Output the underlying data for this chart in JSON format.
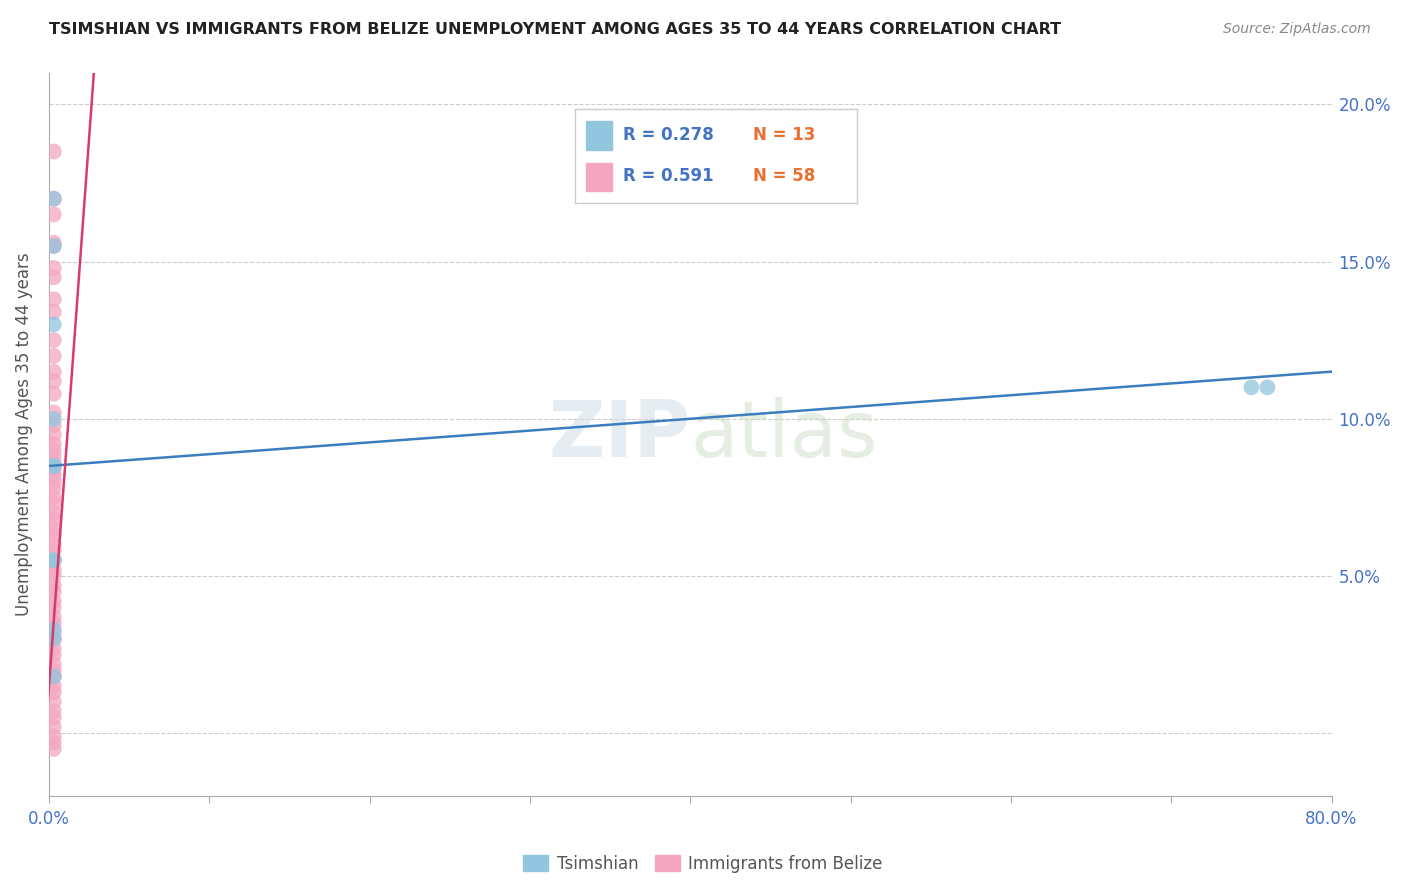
{
  "title": "TSIMSHIAN VS IMMIGRANTS FROM BELIZE UNEMPLOYMENT AMONG AGES 35 TO 44 YEARS CORRELATION CHART",
  "source": "Source: ZipAtlas.com",
  "ylabel": "Unemployment Among Ages 35 to 44 years",
  "xmin": 0.0,
  "xmax": 0.8,
  "ymin": -0.02,
  "ymax": 0.21,
  "xtick_positions": [
    0.0,
    0.1,
    0.2,
    0.3,
    0.4,
    0.5,
    0.6,
    0.7,
    0.8
  ],
  "xtick_labels": [
    "0.0%",
    "",
    "",
    "",
    "",
    "",
    "",
    "",
    "80.0%"
  ],
  "ytick_positions": [
    0.0,
    0.05,
    0.1,
    0.15,
    0.2
  ],
  "ytick_labels_right": [
    "",
    "5.0%",
    "10.0%",
    "15.0%",
    "20.0%"
  ],
  "legend_r1": "R = 0.278",
  "legend_n1": "N = 13",
  "legend_r2": "R = 0.591",
  "legend_n2": "N = 58",
  "color_tsimshian": "#92c5de",
  "color_belize": "#f4a6c0",
  "color_line_tsimshian": "#3a7ebf",
  "color_line_belize": "#d63b6e",
  "watermark_zip": "ZIP",
  "watermark_atlas": "atlas",
  "tsimshian_x": [
    0.003,
    0.003,
    0.003,
    0.003,
    0.003,
    0.003,
    0.003,
    0.003,
    0.003,
    0.003,
    0.003,
    0.75,
    0.76
  ],
  "tsimshian_y": [
    0.155,
    0.17,
    0.13,
    0.1,
    0.085,
    0.085,
    0.055,
    0.055,
    0.03,
    0.033,
    0.018,
    0.11,
    0.11
  ],
  "belize_x": [
    0.003,
    0.003,
    0.003,
    0.003,
    0.003,
    0.003,
    0.003,
    0.003,
    0.003,
    0.003,
    0.003,
    0.003,
    0.003,
    0.003,
    0.003,
    0.003,
    0.003,
    0.003,
    0.003,
    0.003,
    0.003,
    0.003,
    0.003,
    0.003,
    0.003,
    0.003,
    0.003,
    0.003,
    0.003,
    0.003,
    0.003,
    0.003,
    0.003,
    0.003,
    0.003,
    0.003,
    0.003,
    0.003,
    0.003,
    0.003,
    0.003,
    0.003,
    0.003,
    0.003,
    0.003,
    0.003,
    0.003,
    0.003,
    0.003,
    0.003,
    0.003,
    0.003,
    0.003,
    0.003,
    0.003,
    0.003,
    0.003,
    0.003
  ],
  "belize_y": [
    0.185,
    0.17,
    0.165,
    0.156,
    0.155,
    0.148,
    0.145,
    0.138,
    0.134,
    0.125,
    0.12,
    0.115,
    0.112,
    0.108,
    0.102,
    0.098,
    0.095,
    0.092,
    0.09,
    0.088,
    0.086,
    0.084,
    0.082,
    0.08,
    0.078,
    0.075,
    0.073,
    0.07,
    0.068,
    0.065,
    0.063,
    0.06,
    0.058,
    0.055,
    0.052,
    0.05,
    0.047,
    0.045,
    0.042,
    0.04,
    0.037,
    0.035,
    0.032,
    0.03,
    0.027,
    0.025,
    0.022,
    0.02,
    0.018,
    0.015,
    0.013,
    0.01,
    0.007,
    0.005,
    0.002,
    -0.001,
    -0.003,
    -0.005
  ],
  "tsimshian_line_x": [
    0.0,
    0.8
  ],
  "tsimshian_line_y": [
    0.085,
    0.115
  ],
  "belize_line_x": [
    -0.005,
    0.028
  ],
  "belize_line_y": [
    -0.02,
    0.21
  ]
}
